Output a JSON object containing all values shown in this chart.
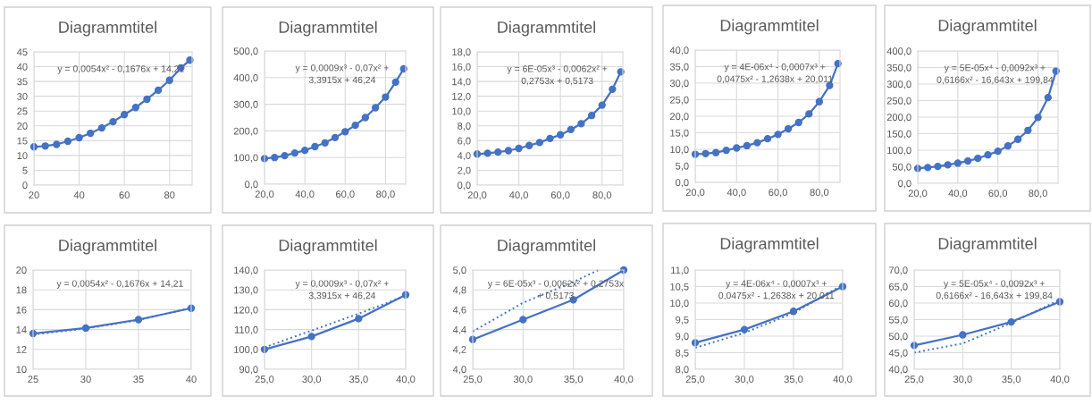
{
  "chart_data": [
    {
      "type": "line",
      "title": "Diagrammtitel",
      "x": [
        20,
        25,
        30,
        35,
        40,
        45,
        50,
        55,
        60,
        65,
        70,
        75,
        80,
        85,
        89
      ],
      "marker": "circle",
      "line_style": "solid",
      "grid": true,
      "series": [
        {
          "color": "#4472c4",
          "values": [
            12.9,
            13.2,
            13.75,
            14.8,
            16.0,
            17.5,
            19.3,
            21.4,
            23.8,
            26.2,
            29.0,
            32.05,
            35.4,
            39.6,
            42.2
          ]
        }
      ],
      "xlim": [
        20,
        90
      ],
      "xticks": [
        20,
        40,
        60,
        80
      ],
      "ylim": [
        0,
        45
      ],
      "yticks": [
        0,
        5,
        10,
        15,
        20,
        25,
        30,
        35,
        40,
        45
      ],
      "annotations": [
        "y = 0,0054x² - 0,1676x + 14,21"
      ]
    },
    {
      "type": "line",
      "title": "Diagrammtitel",
      "x": [
        20,
        25,
        30,
        35,
        40,
        45,
        50,
        55,
        60,
        65,
        70,
        75,
        80,
        85,
        89
      ],
      "marker": "circle",
      "line_style": "solid",
      "grid": true,
      "series": [
        {
          "color": "#4472c4",
          "values": [
            96,
            100,
            107,
            117,
            127,
            141,
            155,
            175,
            197,
            221,
            250,
            287,
            327,
            383,
            433
          ]
        }
      ],
      "xlim": [
        20,
        90
      ],
      "xticks": [
        {
          "value": 20,
          "label": "20,0"
        },
        {
          "value": 40,
          "label": "40,0"
        },
        {
          "value": 60,
          "label": "60,0"
        },
        {
          "value": 80,
          "label": "80,0"
        }
      ],
      "ylim": [
        0,
        500
      ],
      "yticks": [
        {
          "value": 0,
          "label": "0,0"
        },
        {
          "value": 100,
          "label": "100,0"
        },
        {
          "value": 200,
          "label": "200,0"
        },
        {
          "value": 300,
          "label": "300,0"
        },
        {
          "value": 400,
          "label": "400,0"
        },
        {
          "value": 500,
          "label": "500,0"
        }
      ],
      "annotations": [
        "y = 0,0009x³ - 0,07x² +\n3,3915x + 46,24"
      ]
    },
    {
      "type": "line",
      "title": "Diagrammtitel",
      "x": [
        20,
        25,
        30,
        35,
        40,
        45,
        50,
        55,
        60,
        65,
        70,
        75,
        80,
        85,
        89
      ],
      "marker": "circle",
      "line_style": "solid",
      "grid": true,
      "series": [
        {
          "color": "#4472c4",
          "values": [
            4.2,
            4.3,
            4.45,
            4.65,
            4.95,
            5.35,
            5.75,
            6.3,
            6.8,
            7.5,
            8.3,
            9.4,
            10.8,
            12.95,
            15.3
          ]
        }
      ],
      "xlim": [
        20,
        90
      ],
      "xticks": [
        {
          "value": 20,
          "label": "20,0"
        },
        {
          "value": 40,
          "label": "40,0"
        },
        {
          "value": 60,
          "label": "60,0"
        },
        {
          "value": 80,
          "label": "80,0"
        }
      ],
      "ylim": [
        0,
        18
      ],
      "yticks": [
        {
          "value": 0,
          "label": "0,0"
        },
        {
          "value": 2,
          "label": "2,0"
        },
        {
          "value": 4,
          "label": "4,0"
        },
        {
          "value": 6,
          "label": "6,0"
        },
        {
          "value": 8,
          "label": "8,0"
        },
        {
          "value": 10,
          "label": "10,0"
        },
        {
          "value": 12,
          "label": "12,0"
        },
        {
          "value": 14,
          "label": "14,0"
        },
        {
          "value": 16,
          "label": "16,0"
        },
        {
          "value": 18,
          "label": "18,0"
        }
      ],
      "annotations": [
        "y = 6E-05x³ - 0,0062x² +\n0,2753x + 0,5173"
      ]
    },
    {
      "type": "line",
      "title": "Diagrammtitel",
      "x": [
        20,
        25,
        30,
        35,
        40,
        45,
        50,
        55,
        60,
        65,
        70,
        75,
        80,
        85,
        89
      ],
      "marker": "circle",
      "line_style": "solid",
      "grid": true,
      "series": [
        {
          "color": "#4472c4",
          "values": [
            8.5,
            8.7,
            9.0,
            9.7,
            10.4,
            11.1,
            12.0,
            13.2,
            14.5,
            16.2,
            18.1,
            20.7,
            24.4,
            29.3,
            35.9
          ]
        }
      ],
      "xlim": [
        20,
        90
      ],
      "xticks": [
        {
          "value": 20,
          "label": "20,0"
        },
        {
          "value": 40,
          "label": "40,0"
        },
        {
          "value": 60,
          "label": "60,0"
        },
        {
          "value": 80,
          "label": "80,0"
        }
      ],
      "ylim": [
        0,
        40
      ],
      "yticks": [
        {
          "value": 0,
          "label": "0,0"
        },
        {
          "value": 5,
          "label": "5,0"
        },
        {
          "value": 10,
          "label": "10,0"
        },
        {
          "value": 15,
          "label": "15,0"
        },
        {
          "value": 20,
          "label": "20,0"
        },
        {
          "value": 25,
          "label": "25,0"
        },
        {
          "value": 30,
          "label": "30,0"
        },
        {
          "value": 35,
          "label": "35,0"
        },
        {
          "value": 40,
          "label": "40,0"
        }
      ],
      "annotations": [
        "y = 4E-06x⁴ - 0,0007x³ +\n0,0475x² - 1,2638x + 20,011"
      ]
    },
    {
      "type": "line",
      "title": "Diagrammtitel",
      "x": [
        20,
        25,
        30,
        35,
        40,
        45,
        50,
        55,
        60,
        65,
        70,
        75,
        80,
        85,
        89
      ],
      "marker": "circle",
      "line_style": "solid",
      "grid": true,
      "series": [
        {
          "color": "#4472c4",
          "values": [
            45,
            47.6,
            51,
            55.7,
            61,
            67.4,
            75.5,
            86,
            97,
            113,
            133,
            160,
            199,
            259,
            339
          ]
        }
      ],
      "xlim": [
        20,
        90
      ],
      "xticks": [
        {
          "value": 20,
          "label": "20,0"
        },
        {
          "value": 40,
          "label": "40,0"
        },
        {
          "value": 60,
          "label": "60,0"
        },
        {
          "value": 80,
          "label": "80,0"
        }
      ],
      "ylim": [
        0,
        400
      ],
      "yticks": [
        {
          "value": 0,
          "label": "0,0"
        },
        {
          "value": 50,
          "label": "50,0"
        },
        {
          "value": 100,
          "label": "100,0"
        },
        {
          "value": 150,
          "label": "150,0"
        },
        {
          "value": 200,
          "label": "200,0"
        },
        {
          "value": 250,
          "label": "250,0"
        },
        {
          "value": 300,
          "label": "300,0"
        },
        {
          "value": 350,
          "label": "350,0"
        },
        {
          "value": 400,
          "label": "400,0"
        }
      ],
      "annotations": [
        "y = 5E-05x⁴ - 0,0092x³ +\n0,6166x² - 16,643x + 199,84"
      ]
    },
    {
      "type": "line",
      "title": "Diagrammtitel",
      "x": [
        25,
        30,
        35,
        40
      ],
      "marker": "circle",
      "line_style": "solid",
      "grid": true,
      "series": [
        {
          "color": "#4472c4",
          "values": [
            13.6,
            14.15,
            15.0,
            16.15
          ]
        },
        {
          "color": "#4472c4",
          "marker": "none",
          "line_style": "dotted",
          "x": [
            25,
            30,
            35,
            40
          ],
          "values": [
            13.5,
            14.1,
            14.95,
            16.2
          ]
        }
      ],
      "xlim": [
        25,
        40
      ],
      "xticks": [
        25,
        30,
        35,
        40
      ],
      "ylim": [
        10,
        20
      ],
      "yticks": [
        10,
        12,
        14,
        16,
        18,
        20
      ],
      "annotations": [
        "y = 0,0054x² - 0,1676x + 14,21"
      ]
    },
    {
      "type": "line",
      "title": "Diagrammtitel",
      "x": [
        25,
        30,
        35,
        40
      ],
      "marker": "circle",
      "line_style": "solid",
      "grid": true,
      "series": [
        {
          "color": "#4472c4",
          "values": [
            100.0,
            106.5,
            115.5,
            127.5
          ]
        },
        {
          "color": "#4472c4",
          "marker": "none",
          "line_style": "dotted",
          "x": [
            25,
            30,
            35,
            40
          ],
          "values": [
            101,
            109.5,
            118,
            127
          ]
        }
      ],
      "xlim": [
        25,
        40
      ],
      "xticks": [
        {
          "value": 25,
          "label": "25,0"
        },
        {
          "value": 30,
          "label": "30,0"
        },
        {
          "value": 35,
          "label": "35,0"
        },
        {
          "value": 40,
          "label": "40,0"
        }
      ],
      "ylim": [
        90,
        140
      ],
      "yticks": [
        {
          "value": 90,
          "label": "90,0"
        },
        {
          "value": 100,
          "label": "100,0"
        },
        {
          "value": 110,
          "label": "110,0"
        },
        {
          "value": 120,
          "label": "120,0"
        },
        {
          "value": 130,
          "label": "130,0"
        },
        {
          "value": 140,
          "label": "140,0"
        }
      ],
      "annotations": [
        "y = 0,0009x³ - 0,07x² +\n3,3915x + 46,24"
      ]
    },
    {
      "type": "line",
      "title": "Diagrammtitel",
      "x": [
        25,
        30,
        35,
        40
      ],
      "marker": "circle",
      "line_style": "solid",
      "grid": true,
      "series": [
        {
          "color": "#4472c4",
          "values": [
            4.3,
            4.5,
            4.7,
            5.0
          ]
        },
        {
          "color": "#4472c4",
          "marker": "none",
          "line_style": "dotted",
          "x": [
            25,
            30,
            35,
            37.5
          ],
          "values": [
            4.38,
            4.67,
            4.88,
            5.0
          ]
        }
      ],
      "xlim": [
        25,
        40
      ],
      "xticks": [
        {
          "value": 25,
          "label": "25,0"
        },
        {
          "value": 30,
          "label": "30,0"
        },
        {
          "value": 35,
          "label": "35,0"
        },
        {
          "value": 40,
          "label": "40,0"
        }
      ],
      "ylim": [
        4.0,
        5.0
      ],
      "yticks": [
        {
          "value": 4.0,
          "label": "4,0"
        },
        {
          "value": 4.2,
          "label": "4,2"
        },
        {
          "value": 4.4,
          "label": "4,4"
        },
        {
          "value": 4.6,
          "label": "4,6"
        },
        {
          "value": 4.8,
          "label": "4,8"
        },
        {
          "value": 5.0,
          "label": "5,0"
        }
      ],
      "annotations": [
        "y = 6E-05x³ - 0,0062x² + 0,2753x\n+ 0,5173"
      ]
    },
    {
      "type": "line",
      "title": "Diagrammtitel",
      "x": [
        25,
        30,
        35,
        40
      ],
      "marker": "circle",
      "line_style": "solid",
      "grid": true,
      "series": [
        {
          "color": "#4472c4",
          "values": [
            8.8,
            9.2,
            9.75,
            10.5
          ]
        },
        {
          "color": "#4472c4",
          "marker": "none",
          "line_style": "dotted",
          "x": [
            25,
            30,
            35,
            40
          ],
          "values": [
            8.65,
            9.1,
            9.7,
            10.55
          ]
        }
      ],
      "xlim": [
        25,
        40
      ],
      "xticks": [
        {
          "value": 25,
          "label": "25,0"
        },
        {
          "value": 30,
          "label": "30,0"
        },
        {
          "value": 35,
          "label": "35,0"
        },
        {
          "value": 40,
          "label": "40,0"
        }
      ],
      "ylim": [
        8.0,
        11.0
      ],
      "yticks": [
        {
          "value": 8.0,
          "label": "8,0"
        },
        {
          "value": 8.5,
          "label": "8,5"
        },
        {
          "value": 9.0,
          "label": "9,0"
        },
        {
          "value": 9.5,
          "label": "9,5"
        },
        {
          "value": 10.0,
          "label": "10,0"
        },
        {
          "value": 10.5,
          "label": "10,5"
        },
        {
          "value": 11.0,
          "label": "11,0"
        }
      ],
      "annotations": [
        "y = 4E-06x⁴ - 0,0007x³ +\n0,0475x² - 1,2638x + 20,011"
      ]
    },
    {
      "type": "line",
      "title": "Diagrammtitel",
      "x": [
        25,
        30,
        35,
        40
      ],
      "marker": "circle",
      "line_style": "solid",
      "grid": true,
      "series": [
        {
          "color": "#4472c4",
          "values": [
            47.2,
            50.4,
            54.3,
            60.4
          ]
        },
        {
          "color": "#4472c4",
          "marker": "none",
          "line_style": "dotted",
          "x": [
            25,
            30,
            35,
            40
          ],
          "values": [
            45.0,
            47.8,
            54.0,
            61.0
          ]
        }
      ],
      "xlim": [
        25,
        40
      ],
      "xticks": [
        {
          "value": 25,
          "label": "25,0"
        },
        {
          "value": 30,
          "label": "30,0"
        },
        {
          "value": 35,
          "label": "35,0"
        },
        {
          "value": 40,
          "label": "40,0"
        }
      ],
      "ylim": [
        40,
        70
      ],
      "yticks": [
        {
          "value": 40,
          "label": "40,0"
        },
        {
          "value": 45,
          "label": "45,0"
        },
        {
          "value": 50,
          "label": "50,0"
        },
        {
          "value": 55,
          "label": "55,0"
        },
        {
          "value": 60,
          "label": "60,0"
        },
        {
          "value": 65,
          "label": "65,0"
        },
        {
          "value": 70,
          "label": "70,0"
        }
      ],
      "annotations": [
        "y = 5E-05x⁴ - 0,0092x³ +\n0,6166x² - 16,643x + 199,84"
      ]
    }
  ]
}
